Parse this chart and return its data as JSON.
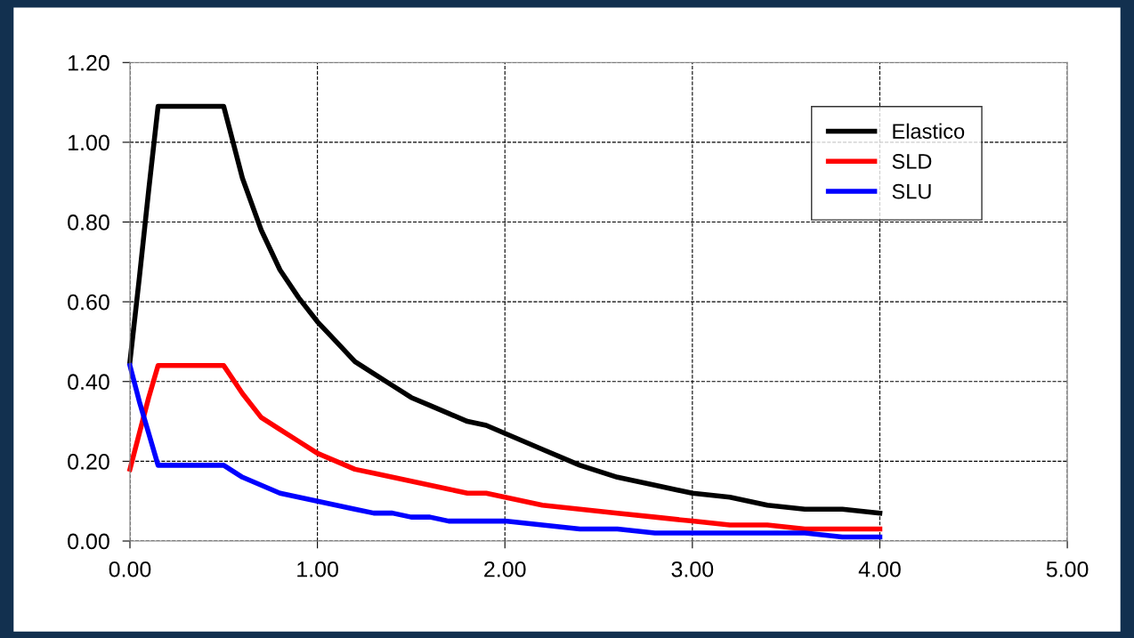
{
  "chart_data": {
    "type": "line",
    "x": [
      0,
      0.05,
      0.1,
      0.15,
      0.2,
      0.3,
      0.4,
      0.5,
      0.6,
      0.7,
      0.8,
      0.9,
      1.0,
      1.1,
      1.2,
      1.3,
      1.4,
      1.5,
      1.6,
      1.7,
      1.8,
      1.9,
      2.0,
      2.2,
      2.4,
      2.6,
      2.8,
      3.0,
      3.2,
      3.4,
      3.6,
      3.8,
      4.0
    ],
    "series": [
      {
        "name": "Elastico",
        "color": "#000000",
        "values": [
          0.45,
          0.66,
          0.88,
          1.09,
          1.09,
          1.09,
          1.09,
          1.09,
          0.91,
          0.78,
          0.68,
          0.61,
          0.55,
          0.5,
          0.45,
          0.42,
          0.39,
          0.36,
          0.34,
          0.32,
          0.3,
          0.29,
          0.27,
          0.23,
          0.19,
          0.16,
          0.14,
          0.12,
          0.11,
          0.09,
          0.08,
          0.08,
          0.07
        ]
      },
      {
        "name": "SLD",
        "color": "#ff0000",
        "values": [
          0.18,
          0.27,
          0.36,
          0.44,
          0.44,
          0.44,
          0.44,
          0.44,
          0.37,
          0.31,
          0.28,
          0.25,
          0.22,
          0.2,
          0.18,
          0.17,
          0.16,
          0.15,
          0.14,
          0.13,
          0.12,
          0.12,
          0.11,
          0.09,
          0.08,
          0.07,
          0.06,
          0.05,
          0.04,
          0.04,
          0.03,
          0.03,
          0.03
        ]
      },
      {
        "name": "SLU",
        "color": "#0000ff",
        "values": [
          0.44,
          0.35,
          0.27,
          0.19,
          0.19,
          0.19,
          0.19,
          0.19,
          0.16,
          0.14,
          0.12,
          0.11,
          0.1,
          0.09,
          0.08,
          0.07,
          0.07,
          0.06,
          0.06,
          0.05,
          0.05,
          0.05,
          0.05,
          0.04,
          0.03,
          0.03,
          0.02,
          0.02,
          0.02,
          0.02,
          0.02,
          0.01,
          0.01
        ]
      }
    ],
    "xlim": [
      0,
      5
    ],
    "xticks": [
      {
        "value": 0,
        "label": "0.00"
      },
      {
        "value": 1,
        "label": "1.00"
      },
      {
        "value": 2,
        "label": "2.00"
      },
      {
        "value": 3,
        "label": "3.00"
      },
      {
        "value": 4,
        "label": "4.00"
      },
      {
        "value": 5,
        "label": "5.00"
      }
    ],
    "ylim": [
      0,
      1.2
    ],
    "yticks": [
      {
        "value": 0,
        "label": "0.00"
      },
      {
        "value": 0.2,
        "label": "0.20"
      },
      {
        "value": 0.4,
        "label": "0.40"
      },
      {
        "value": 0.6,
        "label": "0.60"
      },
      {
        "value": 0.8,
        "label": "0.80"
      },
      {
        "value": 1.0,
        "label": "1.00"
      },
      {
        "value": 1.2,
        "label": "1.20"
      }
    ],
    "grid": true,
    "legend": "top right",
    "marker": "none",
    "line_style": "solid"
  }
}
